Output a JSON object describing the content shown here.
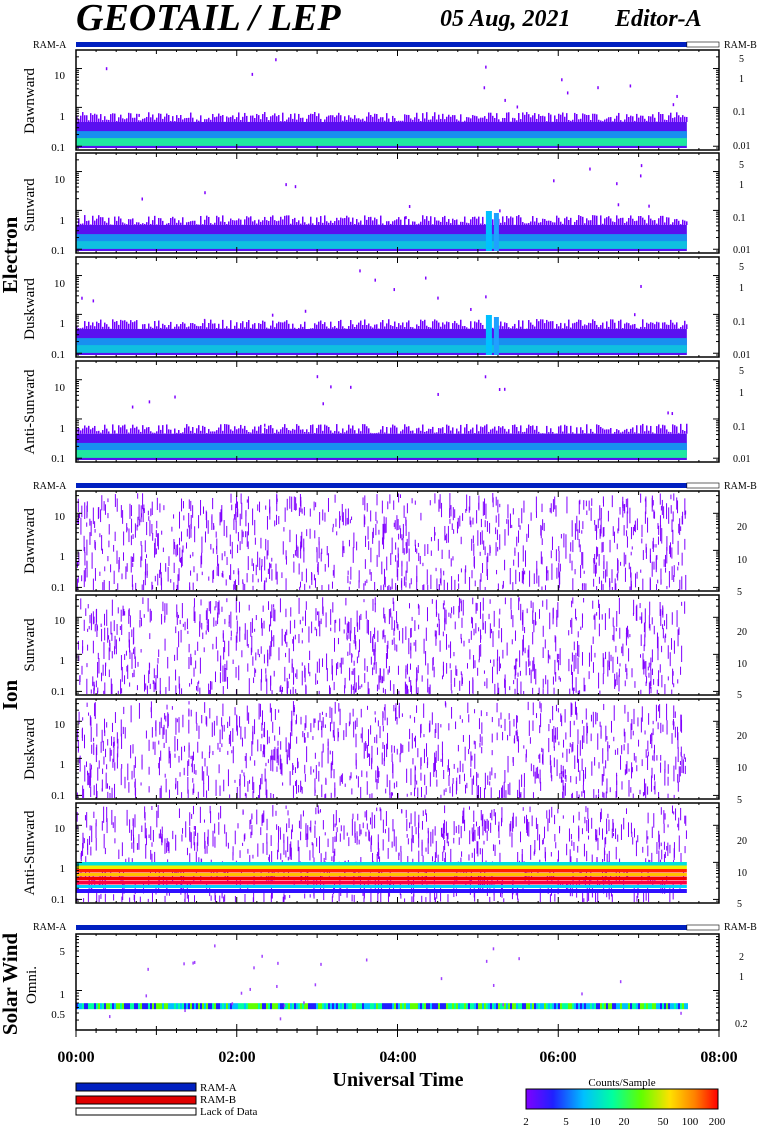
{
  "header": {
    "title": "GEOTAIL / LEP",
    "date": "05 Aug, 2021",
    "editor": "Editor-A"
  },
  "mode_labels": {
    "ram_a": "RAM-A",
    "ram_b": "RAM-B"
  },
  "sections": [
    {
      "name": "Electron",
      "panels": [
        "Dawnward",
        "Sunward",
        "Duskward",
        "Anti-Sunward"
      ]
    },
    {
      "name": "Ion",
      "panels": [
        "Dawnward",
        "Sunward",
        "Duskward",
        "Anti-Sunward"
      ]
    },
    {
      "name": "Solar Wind",
      "panels": [
        "Omni."
      ]
    }
  ],
  "axes": {
    "left_ticks": [
      "10",
      "1",
      "0.1"
    ],
    "left_ticks_solar": [
      "5",
      "1",
      "0.5"
    ],
    "right_ticks_electron": [
      "5",
      "1",
      "0.1",
      "0.01"
    ],
    "right_ticks_ion": [
      "20",
      "10",
      "5"
    ],
    "right_ticks_solar": [
      "2",
      "1",
      "0.2"
    ],
    "time_ticks": [
      "00:00",
      "02:00",
      "04:00",
      "06:00",
      "08:00"
    ],
    "xlabel": "Universal Time"
  },
  "legend": {
    "items": [
      {
        "label": "RAM-A",
        "color": "#0020c0"
      },
      {
        "label": "RAM-B",
        "color": "#e00000"
      },
      {
        "label": "Lack of Data",
        "color": "#ffffff"
      }
    ]
  },
  "colorbar": {
    "title": "Counts/Sample",
    "ticks": [
      "2",
      "5",
      "10",
      "20",
      "50",
      "100",
      "200"
    ],
    "colors": [
      "#8000ff",
      "#2020ff",
      "#00c0ff",
      "#00ffa0",
      "#60ff00",
      "#ffe000",
      "#ff8000",
      "#ff0000"
    ]
  },
  "chart_data": {
    "type": "heatmap",
    "x_range_hours": [
      0,
      8
    ],
    "data_end_hour": 7.6,
    "mode_bar": {
      "ram_a_until_hour": 7.6,
      "lack_of_data_from_hour": 7.6
    },
    "electron_y_range_log": [
      0.08,
      30
    ],
    "ion_y_range_log": [
      0.08,
      40
    ],
    "solar_y_range_log": [
      0.2,
      10
    ]
  }
}
